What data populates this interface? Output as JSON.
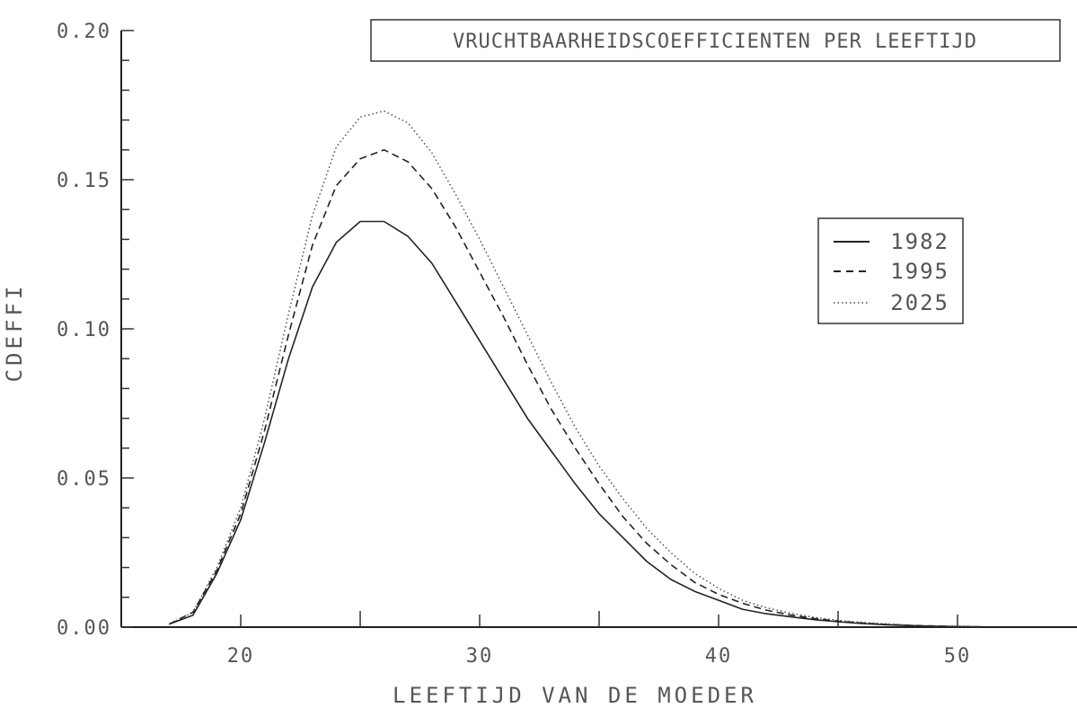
{
  "chart_data": {
    "type": "line",
    "title": "VRUCHTBAARHEIDSCOEFFICIENTEN PER LEEFTIJD",
    "xlabel": "LEEFTIJD VAN DE MOEDER",
    "ylabel": "CDEFFI",
    "xlim": [
      15,
      55
    ],
    "ylim": [
      0,
      0.2
    ],
    "x_ticks": [
      "20",
      "30",
      "40",
      "50"
    ],
    "x_tick_values": [
      20,
      30,
      40,
      50
    ],
    "y_ticks": [
      "0.00",
      "0.05",
      "0.10",
      "0.15",
      "0.20"
    ],
    "y_tick_values": [
      0,
      0.05,
      0.1,
      0.15,
      0.2
    ],
    "legend_position": "right",
    "grid": false,
    "x": [
      17,
      18,
      19,
      20,
      21,
      22,
      23,
      24,
      25,
      26,
      27,
      28,
      29,
      30,
      31,
      32,
      33,
      34,
      35,
      36,
      37,
      38,
      39,
      40,
      41,
      42,
      43,
      44,
      45,
      46,
      47,
      48,
      49,
      50,
      51
    ],
    "series": [
      {
        "name": "1982",
        "style": "solid",
        "values": [
          0.001,
          0.004,
          0.018,
          0.036,
          0.062,
          0.09,
          0.114,
          0.129,
          0.136,
          0.136,
          0.131,
          0.122,
          0.109,
          0.096,
          0.083,
          0.07,
          0.059,
          0.048,
          0.038,
          0.03,
          0.022,
          0.016,
          0.012,
          0.009,
          0.006,
          0.0045,
          0.0035,
          0.0025,
          0.0018,
          0.0012,
          0.0008,
          0.0005,
          0.0003,
          0.0002,
          0.0001
        ]
      },
      {
        "name": "1995",
        "style": "dashed",
        "values": [
          0.001,
          0.005,
          0.019,
          0.038,
          0.066,
          0.098,
          0.128,
          0.148,
          0.157,
          0.16,
          0.156,
          0.147,
          0.134,
          0.119,
          0.104,
          0.088,
          0.073,
          0.06,
          0.048,
          0.037,
          0.028,
          0.021,
          0.015,
          0.011,
          0.008,
          0.0057,
          0.0041,
          0.0029,
          0.002,
          0.0014,
          0.0009,
          0.0006,
          0.0004,
          0.0002,
          0.0001
        ]
      },
      {
        "name": "2025",
        "style": "dotted",
        "values": [
          0.001,
          0.005,
          0.02,
          0.04,
          0.07,
          0.105,
          0.138,
          0.161,
          0.171,
          0.173,
          0.169,
          0.159,
          0.145,
          0.13,
          0.114,
          0.098,
          0.082,
          0.067,
          0.054,
          0.043,
          0.033,
          0.025,
          0.018,
          0.013,
          0.009,
          0.0065,
          0.0047,
          0.0033,
          0.0023,
          0.0016,
          0.0011,
          0.0007,
          0.0004,
          0.0002,
          0.0001
        ]
      }
    ]
  }
}
